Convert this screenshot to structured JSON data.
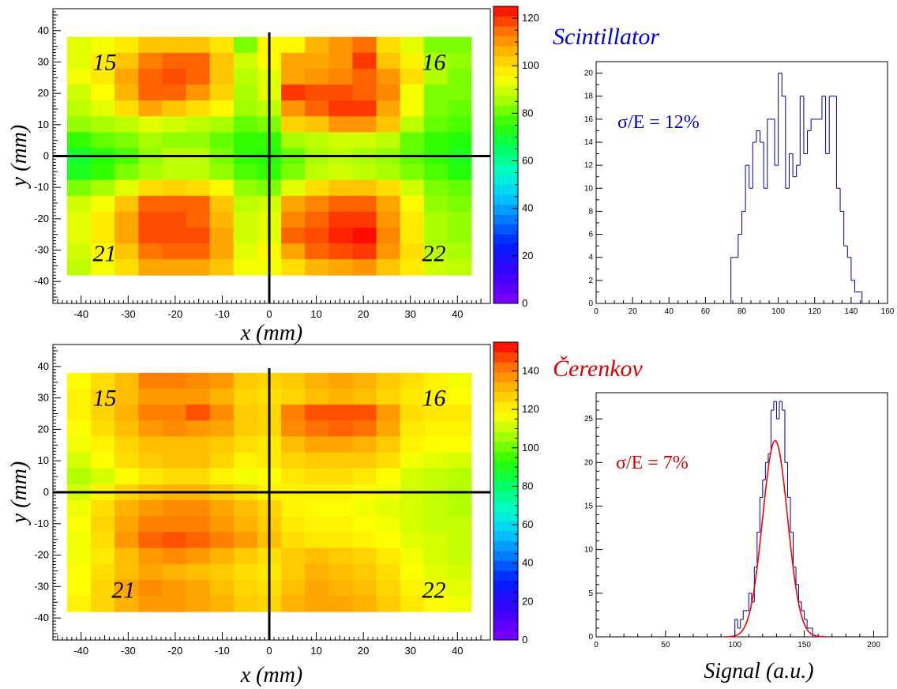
{
  "chart_data": [
    {
      "type": "heatmap",
      "xlabel": "x (mm)",
      "ylabel": "y (mm)",
      "xlim": [
        -46,
        47
      ],
      "ylim": [
        -47,
        47
      ],
      "x_ticks": [
        -40,
        -30,
        -20,
        -10,
        0,
        10,
        20,
        30,
        40
      ],
      "y_ticks": [
        -40,
        -30,
        -20,
        -10,
        0,
        10,
        20,
        30,
        40
      ],
      "grid": false,
      "cell_x_range": [
        -43,
        43
      ],
      "cell_y_range": [
        -38,
        38
      ],
      "cols": 17,
      "rows": 15,
      "zlim": [
        0,
        125
      ],
      "z_ticks": [
        0,
        20,
        40,
        60,
        80,
        100,
        120
      ],
      "quadrant_labels": [
        {
          "text": "15",
          "x": -35,
          "y": 30
        },
        {
          "text": "16",
          "x": 35,
          "y": 30
        },
        {
          "text": "21",
          "x": -35,
          "y": -31
        },
        {
          "text": "22",
          "x": 35,
          "y": -31
        }
      ],
      "z": [
        [
          92,
          94,
          98,
          104,
          104,
          104,
          99,
          82,
          96,
          96,
          106,
          110,
          115,
          100,
          92,
          82,
          82
        ],
        [
          92,
          98,
          104,
          113,
          116,
          116,
          104,
          90,
          96,
          108,
          108,
          110,
          120,
          104,
          97,
          86,
          84
        ],
        [
          94,
          98,
          108,
          116,
          118,
          116,
          104,
          88,
          92,
          108,
          110,
          112,
          116,
          110,
          100,
          87,
          82
        ],
        [
          90,
          95,
          106,
          116,
          116,
          110,
          102,
          86,
          92,
          120,
          118,
          118,
          116,
          112,
          94,
          82,
          82
        ],
        [
          88,
          92,
          100,
          108,
          104,
          100,
          96,
          85,
          88,
          110,
          116,
          120,
          120,
          108,
          94,
          82,
          80
        ],
        [
          84,
          86,
          88,
          92,
          90,
          88,
          86,
          80,
          82,
          102,
          104,
          110,
          110,
          104,
          88,
          80,
          78
        ],
        [
          76,
          80,
          82,
          86,
          84,
          84,
          80,
          76,
          76,
          86,
          88,
          90,
          90,
          88,
          80,
          76,
          74
        ],
        [
          70,
          74,
          78,
          84,
          88,
          88,
          82,
          76,
          74,
          80,
          86,
          88,
          86,
          84,
          80,
          76,
          72
        ],
        [
          72,
          76,
          82,
          86,
          88,
          88,
          84,
          78,
          76,
          82,
          88,
          90,
          88,
          86,
          82,
          78,
          74
        ],
        [
          82,
          86,
          92,
          100,
          102,
          100,
          96,
          84,
          82,
          92,
          100,
          104,
          104,
          100,
          90,
          82,
          80
        ],
        [
          90,
          94,
          104,
          116,
          116,
          116,
          104,
          88,
          90,
          108,
          112,
          116,
          116,
          108,
          96,
          84,
          82
        ],
        [
          92,
          98,
          108,
          118,
          118,
          116,
          106,
          90,
          92,
          112,
          116,
          120,
          120,
          110,
          98,
          86,
          84
        ],
        [
          92,
          98,
          108,
          118,
          118,
          118,
          108,
          90,
          92,
          116,
          118,
          122,
          124,
          112,
          98,
          86,
          84
        ],
        [
          90,
          96,
          104,
          114,
          116,
          116,
          108,
          92,
          96,
          108,
          116,
          118,
          120,
          110,
          100,
          88,
          86
        ],
        [
          88,
          94,
          100,
          108,
          108,
          108,
          104,
          94,
          94,
          100,
          106,
          108,
          110,
          104,
          98,
          90,
          88
        ]
      ]
    },
    {
      "type": "bar",
      "title": "Scintillator",
      "annotation": "σ/E = 12%",
      "xlim": [
        0,
        160
      ],
      "ylim": [
        0,
        21
      ],
      "x_ticks": [
        0,
        20,
        40,
        60,
        80,
        100,
        120,
        140,
        160
      ],
      "y_ticks": [
        0,
        2,
        4,
        6,
        8,
        10,
        12,
        14,
        16,
        18,
        20
      ],
      "bin_width": 2,
      "bin_start": 74,
      "values": [
        4,
        4,
        6,
        8,
        12,
        10,
        14,
        15,
        14,
        10,
        16,
        16,
        12,
        20,
        18,
        10,
        13,
        11,
        12,
        18,
        13,
        15,
        16,
        16,
        16,
        18,
        13,
        18,
        18,
        10,
        8,
        5,
        4,
        2,
        1,
        1
      ]
    },
    {
      "type": "heatmap",
      "xlabel": "x (mm)",
      "ylabel": "y (mm)",
      "xlim": [
        -46,
        47
      ],
      "ylim": [
        -47,
        47
      ],
      "x_ticks": [
        -40,
        -30,
        -20,
        -10,
        0,
        10,
        20,
        30,
        40
      ],
      "y_ticks": [
        -40,
        -30,
        -20,
        -10,
        0,
        10,
        20,
        30,
        40
      ],
      "grid": false,
      "cell_x_range": [
        -43,
        43
      ],
      "cell_y_range": [
        -38,
        38
      ],
      "cols": 17,
      "rows": 15,
      "zlim": [
        0,
        155
      ],
      "z_ticks": [
        0,
        20,
        40,
        60,
        80,
        100,
        120,
        140
      ],
      "quadrant_labels": [
        {
          "text": "15",
          "x": -35,
          "y": 30
        },
        {
          "text": "16",
          "x": 35,
          "y": 30
        },
        {
          "text": "21",
          "x": -31,
          "y": -31
        },
        {
          "text": "22",
          "x": 35,
          "y": -31
        }
      ],
      "z": [
        [
          118,
          124,
          130,
          140,
          140,
          138,
          136,
          128,
          126,
          128,
          132,
          134,
          132,
          128,
          124,
          120,
          116
        ],
        [
          120,
          126,
          130,
          136,
          136,
          136,
          132,
          126,
          124,
          126,
          130,
          132,
          130,
          126,
          122,
          120,
          118
        ],
        [
          120,
          126,
          132,
          140,
          140,
          146,
          138,
          128,
          126,
          140,
          146,
          146,
          146,
          136,
          124,
          122,
          122
        ],
        [
          118,
          124,
          130,
          136,
          138,
          136,
          134,
          128,
          126,
          138,
          142,
          144,
          142,
          134,
          122,
          120,
          120
        ],
        [
          116,
          120,
          126,
          130,
          130,
          130,
          128,
          124,
          122,
          130,
          134,
          134,
          132,
          128,
          120,
          118,
          118
        ],
        [
          112,
          118,
          124,
          128,
          130,
          130,
          126,
          120,
          122,
          126,
          128,
          128,
          128,
          124,
          116,
          114,
          112
        ],
        [
          108,
          112,
          118,
          122,
          124,
          124,
          120,
          116,
          118,
          122,
          124,
          124,
          122,
          118,
          112,
          110,
          108
        ],
        [
          112,
          120,
          126,
          130,
          132,
          132,
          128,
          124,
          120,
          120,
          120,
          120,
          118,
          116,
          112,
          110,
          108
        ],
        [
          116,
          124,
          132,
          136,
          138,
          138,
          134,
          130,
          126,
          120,
          118,
          118,
          116,
          114,
          112,
          110,
          108
        ],
        [
          118,
          126,
          134,
          140,
          140,
          140,
          136,
          132,
          128,
          122,
          120,
          120,
          118,
          116,
          112,
          110,
          110
        ],
        [
          116,
          124,
          136,
          144,
          146,
          144,
          140,
          136,
          130,
          124,
          122,
          122,
          120,
          118,
          114,
          112,
          110
        ],
        [
          116,
          122,
          130,
          136,
          138,
          136,
          132,
          128,
          124,
          128,
          130,
          128,
          126,
          122,
          116,
          112,
          110
        ],
        [
          118,
          124,
          130,
          134,
          132,
          130,
          128,
          124,
          122,
          128,
          132,
          130,
          128,
          124,
          118,
          114,
          112
        ],
        [
          118,
          126,
          134,
          138,
          136,
          134,
          130,
          126,
          124,
          130,
          134,
          132,
          130,
          126,
          120,
          116,
          114
        ],
        [
          120,
          126,
          132,
          136,
          136,
          134,
          132,
          128,
          126,
          132,
          134,
          134,
          132,
          128,
          122,
          118,
          116
        ]
      ]
    },
    {
      "type": "bar",
      "title": "Čerenkov",
      "annotation": "σ/E = 7%",
      "xlabel": "Signal (a.u.)",
      "xlim": [
        0,
        210
      ],
      "ylim": [
        0,
        28
      ],
      "x_ticks": [
        0,
        50,
        100,
        150,
        200
      ],
      "y_ticks": [
        0,
        5,
        10,
        15,
        20,
        25
      ],
      "bin_width": 2,
      "bin_start": 100,
      "values": [
        2,
        1,
        2,
        3,
        3,
        5,
        4,
        8,
        12,
        16,
        18,
        20,
        21,
        26,
        27,
        25,
        27,
        26,
        20,
        16,
        12,
        8,
        6,
        4,
        3,
        2,
        1,
        1
      ],
      "fit": {
        "type": "gaussian",
        "mean": 129,
        "sigma": 9,
        "amplitude": 22.5,
        "color": "#ff0000"
      }
    }
  ],
  "colors": {
    "scintillator_title": "#0000dd",
    "cerenkov_title": "#dd0000",
    "hist_line": "#000099",
    "fit_line": "#ff0000"
  }
}
